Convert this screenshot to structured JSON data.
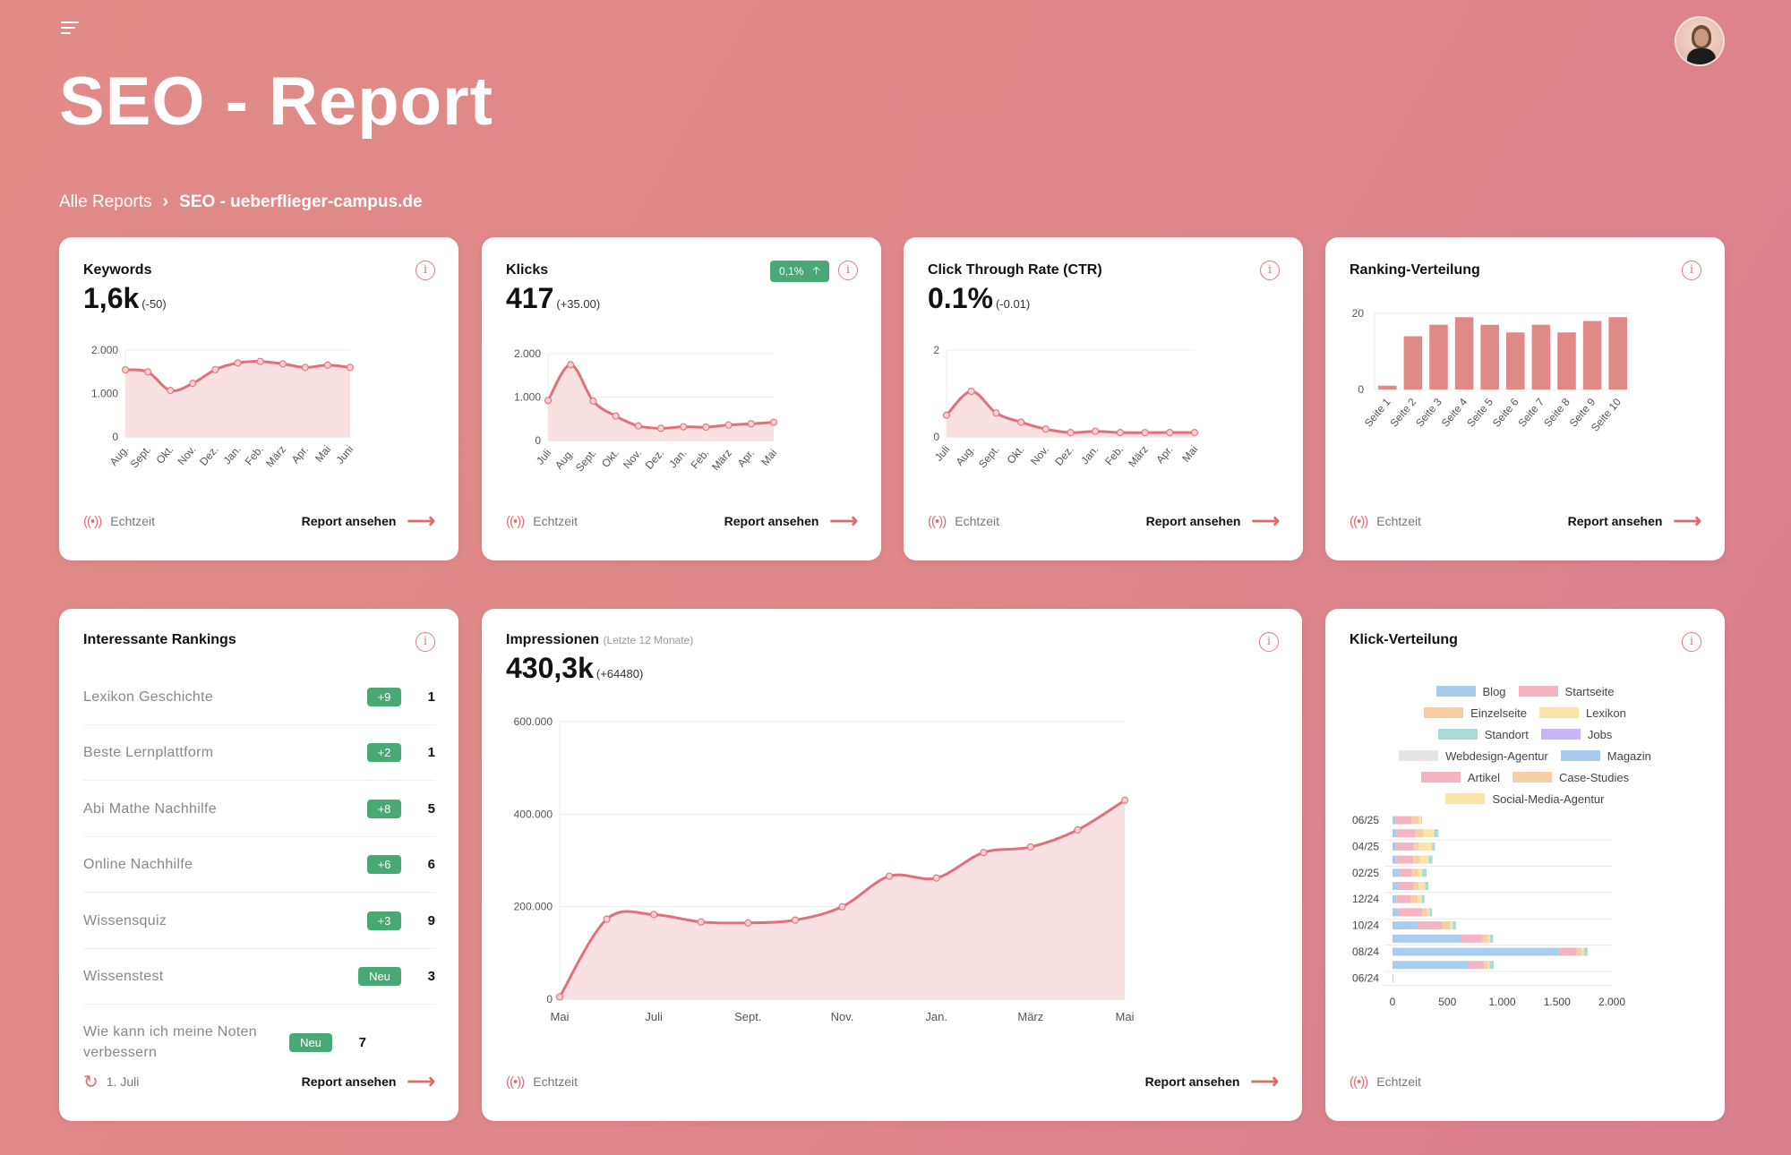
{
  "header": {
    "title": "SEO - Report",
    "breadcrumb": {
      "root": "Alle Reports",
      "current": "SEO - ueberflieger-campus.de"
    }
  },
  "common": {
    "realtime": "Echtzeit",
    "report_link": "Report ansehen",
    "info": "i"
  },
  "cards": {
    "keywords": {
      "title": "Keywords",
      "value": "1,6k",
      "delta": "(-50)"
    },
    "klicks": {
      "title": "Klicks",
      "value": "417",
      "delta": "(+35.00)",
      "badge": "0,1%"
    },
    "ctr": {
      "title": "Click Through Rate (CTR)",
      "value": "0.1%",
      "delta": "(-0.01)"
    },
    "ranking": {
      "title": "Ranking-Verteilung"
    },
    "rankings": {
      "title": "Interessante Rankings",
      "updated": "1. Juli",
      "items": [
        {
          "keyword": "Lexikon Geschichte",
          "change": "+9",
          "position": "1"
        },
        {
          "keyword": "Beste Lernplattform",
          "change": "+2",
          "position": "1"
        },
        {
          "keyword": "Abi Mathe Nachhilfe",
          "change": "+8",
          "position": "5"
        },
        {
          "keyword": "Online Nachhilfe",
          "change": "+6",
          "position": "6"
        },
        {
          "keyword": "Wissensquiz",
          "change": "+3",
          "position": "9"
        },
        {
          "keyword": "Wissenstest",
          "change": "Neu",
          "position": "3"
        },
        {
          "keyword": "Wie kann ich meine Noten verbessern",
          "change": "Neu",
          "position": "7"
        }
      ]
    },
    "impressionen": {
      "title": "Impressionen",
      "subtitle": "(Letzte 12 Monate)",
      "value": "430,3k",
      "delta": "(+64480)"
    },
    "klickverteilung": {
      "title": "Klick-Verteilung"
    }
  },
  "colors": {
    "accent": "#e0707a",
    "area": "#f9e1e1",
    "positive": "#4aa874",
    "bar": "#e08a88"
  },
  "chart_data": [
    {
      "id": "keywords",
      "type": "line",
      "x_labels": [
        "Aug.",
        "Sept.",
        "Okt.",
        "Nov.",
        "Dez.",
        "Jan.",
        "Feb.",
        "März",
        "Apr.",
        "Mai",
        "Juni"
      ],
      "values": [
        1545,
        1497,
        1069,
        1234,
        1550,
        1703,
        1738,
        1683,
        1600,
        1655,
        1600
      ],
      "ylim": [
        0,
        2000
      ],
      "yticks": [
        0,
        1000,
        2000
      ],
      "ytick_labels": [
        "0",
        "1.000",
        "2.000"
      ],
      "grid": true
    },
    {
      "id": "klicks",
      "type": "line",
      "x_labels": [
        "Juli",
        "Aug.",
        "Sept.",
        "Okt.",
        "Nov.",
        "Dez.",
        "Jan.",
        "Feb.",
        "März",
        "Apr.",
        "Mai"
      ],
      "values": [
        921,
        1745,
        907,
        564,
        337,
        282,
        316,
        309,
        357,
        385,
        419
      ],
      "ylim": [
        0,
        2000
      ],
      "yticks": [
        0,
        1000,
        2000
      ],
      "ytick_labels": [
        "0",
        "1.000",
        "2.000"
      ],
      "grid": true
    },
    {
      "id": "ctr",
      "type": "line",
      "x_labels": [
        "Juli",
        "Aug.",
        "Sept.",
        "Okt.",
        "Nov.",
        "Dez.",
        "Jan.",
        "Feb.",
        "März",
        "Apr.",
        "Mai"
      ],
      "values": [
        0.5,
        1.05,
        0.55,
        0.34,
        0.18,
        0.1,
        0.13,
        0.1,
        0.1,
        0.1,
        0.1
      ],
      "ylim": [
        0,
        2
      ],
      "yticks": [
        0,
        2
      ],
      "ytick_labels": [
        "0",
        "2"
      ],
      "grid": true
    },
    {
      "id": "ranking",
      "type": "bar",
      "categories": [
        "Seite 1",
        "Seite 2",
        "Seite 3",
        "Seite 4",
        "Seite 5",
        "Seite 6",
        "Seite 7",
        "Seite 8",
        "Seite 9",
        "Seite 10"
      ],
      "values": [
        1,
        14,
        17,
        19,
        17,
        15,
        17,
        15,
        18,
        19
      ],
      "ylim": [
        0,
        20
      ],
      "yticks": [
        0,
        20
      ],
      "ytick_labels": [
        "0",
        "20"
      ],
      "grid": true
    },
    {
      "id": "impressionen",
      "type": "area",
      "x_labels": [
        "Mai",
        "Juli",
        "Sept.",
        "Nov.",
        "Jan.",
        "März",
        "Mai"
      ],
      "values": [
        5000,
        173000,
        183000,
        167000,
        165000,
        171000,
        200000,
        266000,
        262000,
        317000,
        329000,
        366000,
        430000
      ],
      "ylim": [
        0,
        600000
      ],
      "yticks": [
        0,
        200000,
        400000,
        600000
      ],
      "ytick_labels": [
        "0",
        "200.000",
        "400.000",
        "600.000"
      ],
      "grid": true
    },
    {
      "id": "klickverteilung",
      "type": "bar",
      "orientation": "horizontal",
      "stacked": true,
      "ytick_labels": [
        "06/25",
        "04/25",
        "02/25",
        "12/24",
        "10/24",
        "08/24",
        "06/24"
      ],
      "xlim": [
        0,
        2000
      ],
      "xticks": [
        0,
        500,
        1000,
        1500,
        2000
      ],
      "xtick_labels": [
        "0",
        "500",
        "1.000",
        "1.500",
        "2.000"
      ],
      "legend": [
        {
          "name": "Blog",
          "color": "#a9cdf0"
        },
        {
          "name": "Startseite",
          "color": "#f5b4c1"
        },
        {
          "name": "Einzelseite",
          "color": "#f7cfa6"
        },
        {
          "name": "Lexikon",
          "color": "#fbe4a9"
        },
        {
          "name": "Standort",
          "color": "#a9dcd8"
        },
        {
          "name": "Jobs",
          "color": "#c8b5f5"
        },
        {
          "name": "Webdesign-Agentur",
          "color": "#e4e4e4"
        },
        {
          "name": "Magazin",
          "color": "#a9cdf0"
        },
        {
          "name": "Artikel",
          "color": "#f5b4c1"
        },
        {
          "name": "Case-Studies",
          "color": "#f7cfa6"
        },
        {
          "name": "Social-Media-Agentur",
          "color": "#fbe4a9"
        }
      ],
      "series": [
        {
          "name": "Blog",
          "values": [
            27,
            40,
            35,
            35,
            63,
            57,
            35,
            57,
            232,
            628,
            1516,
            686,
            8
          ]
        },
        {
          "name": "Startseite",
          "values": [
            145,
            170,
            160,
            155,
            115,
            135,
            135,
            215,
            220,
            194,
            164,
            148,
            0
          ]
        },
        {
          "name": "Einzelseite",
          "values": [
            68,
            70,
            45,
            60,
            57,
            45,
            60,
            45,
            74,
            46,
            44,
            36,
            0
          ]
        },
        {
          "name": "Lexikon",
          "values": [
            20,
            100,
            120,
            80,
            38,
            60,
            35,
            20,
            22,
            19,
            22,
            14,
            0
          ]
        },
        {
          "name": "Standort",
          "values": [
            8,
            38,
            27,
            35,
            38,
            30,
            27,
            22,
            30,
            30,
            33,
            41,
            0
          ]
        }
      ]
    }
  ]
}
